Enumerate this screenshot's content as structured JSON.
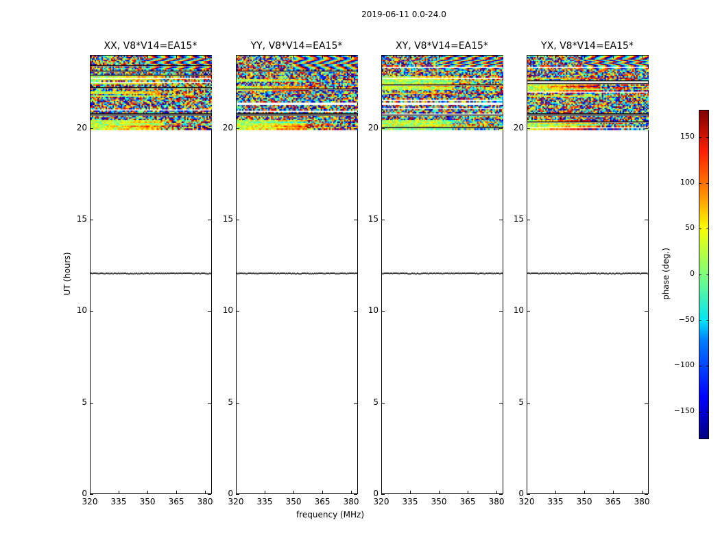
{
  "chart_data": {
    "type": "heatmap",
    "title": "2019-06-11 0.0-24.0",
    "xlabel": "frequency (MHz)",
    "ylabel": "UT (hours)",
    "xlim": [
      320,
      383.2
    ],
    "ylim": [
      0,
      24
    ],
    "xticks": [
      320,
      335,
      350,
      365,
      380
    ],
    "yticks": [
      0,
      5,
      10,
      15,
      20
    ],
    "panels": [
      {
        "title": "XX, V8*V14=EA15*",
        "seed": 11
      },
      {
        "title": "YY, V8*V14=EA15*",
        "seed": 23
      },
      {
        "title": "XY, V8*V14=EA15*",
        "seed": 37
      },
      {
        "title": "YX, V8*V14=EA15*",
        "seed": 51
      }
    ],
    "data_time_range": [
      19.95,
      24
    ],
    "flagged_line_time": 12.1,
    "colorbar": {
      "label": "phase (deg.)",
      "range": [
        -180,
        180
      ],
      "ticks": [
        150,
        100,
        50,
        0,
        -50,
        -100,
        -150
      ],
      "tick_labels": [
        "150",
        "100",
        "50",
        "0",
        "−50",
        "−100",
        "−150"
      ],
      "colormap": "jet"
    }
  }
}
